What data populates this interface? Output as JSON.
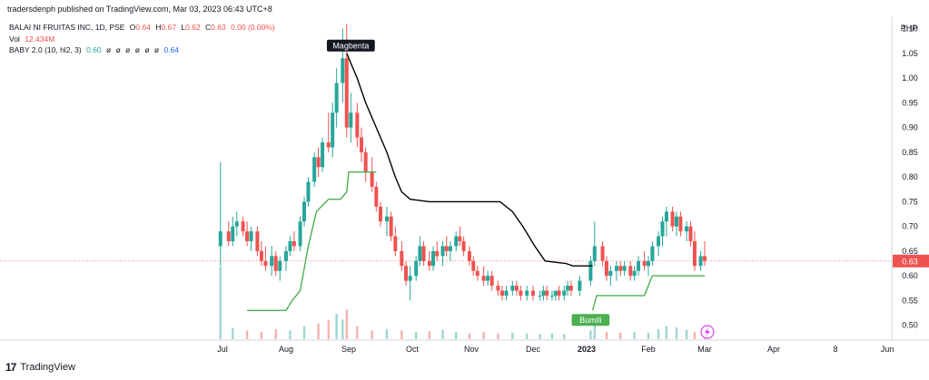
{
  "header": {
    "author_line": "tradersdenph published on TradingView.com, Mar 03, 2023 06:43 UTC+8"
  },
  "legend": {
    "symbol": "BALAI NI FRUITAS INC, 1D, PSE",
    "ohlc": [
      {
        "k": "O",
        "v": "0.64"
      },
      {
        "k": "H",
        "v": "0.67"
      },
      {
        "k": "L",
        "v": "0.62"
      },
      {
        "k": "C",
        "v": "0.63"
      }
    ],
    "change": "0.00 (0.00%)",
    "vol_label": "Vol",
    "vol_value": "12.434M",
    "indicator_label": "BABY 2.0 (10, hl2, 3)",
    "indicator_value": "0.60",
    "indicator_empty": [
      "ø",
      "ø",
      "ø",
      "ø",
      "ø",
      "ø"
    ],
    "indicator_value2": "0.64"
  },
  "footer": {
    "brand": "TradingView"
  },
  "colors": {
    "up": "#26a69a",
    "down": "#ef5350",
    "black_line": "#000000",
    "green_line": "#4caf50",
    "price_label_bg": "#ef5350"
  },
  "chart_data": {
    "type": "candlestick",
    "currency": "PHP",
    "y_ticks": [
      "1.10",
      "1.05",
      "1.00",
      "0.95",
      "0.90",
      "0.85",
      "0.80",
      "0.75",
      "0.70",
      "0.65",
      "0.60",
      "0.55",
      "0.50"
    ],
    "ylim": [
      0.47,
      1.125
    ],
    "last_price": "0.63",
    "x_ticks": [
      "Jul",
      "Aug",
      "Sep",
      "Oct",
      "Nov",
      "Dec",
      "2023",
      "Feb",
      "Mar",
      "Apr",
      "8",
      "Jun"
    ],
    "x_tick_dates": [
      "2022-07-01",
      "2022-08-01",
      "2022-09-01",
      "2022-10-01",
      "2022-11-01",
      "2022-12-01",
      "2023-01-01",
      "2023-02-01",
      "2023-03-01",
      "2023-04-01",
      "2023-05-08",
      "2023-06-01"
    ],
    "candles": [
      {
        "d": "2022-06-30",
        "o": 0.66,
        "h": 0.83,
        "l": 0.62,
        "c": 0.69
      },
      {
        "d": "2022-07-04",
        "o": 0.69,
        "h": 0.71,
        "l": 0.66,
        "c": 0.67
      },
      {
        "d": "2022-07-06",
        "o": 0.67,
        "h": 0.72,
        "l": 0.66,
        "c": 0.7
      },
      {
        "d": "2022-07-08",
        "o": 0.7,
        "h": 0.73,
        "l": 0.68,
        "c": 0.71
      },
      {
        "d": "2022-07-11",
        "o": 0.71,
        "h": 0.72,
        "l": 0.68,
        "c": 0.69
      },
      {
        "d": "2022-07-13",
        "o": 0.69,
        "h": 0.71,
        "l": 0.66,
        "c": 0.67
      },
      {
        "d": "2022-07-15",
        "o": 0.67,
        "h": 0.7,
        "l": 0.65,
        "c": 0.69
      },
      {
        "d": "2022-07-18",
        "o": 0.69,
        "h": 0.7,
        "l": 0.64,
        "c": 0.65
      },
      {
        "d": "2022-07-20",
        "o": 0.65,
        "h": 0.67,
        "l": 0.62,
        "c": 0.63
      },
      {
        "d": "2022-07-22",
        "o": 0.63,
        "h": 0.66,
        "l": 0.61,
        "c": 0.62
      },
      {
        "d": "2022-07-25",
        "o": 0.62,
        "h": 0.66,
        "l": 0.6,
        "c": 0.64
      },
      {
        "d": "2022-07-27",
        "o": 0.64,
        "h": 0.65,
        "l": 0.6,
        "c": 0.61
      },
      {
        "d": "2022-07-29",
        "o": 0.61,
        "h": 0.64,
        "l": 0.59,
        "c": 0.63
      },
      {
        "d": "2022-08-01",
        "o": 0.63,
        "h": 0.66,
        "l": 0.61,
        "c": 0.65
      },
      {
        "d": "2022-08-03",
        "o": 0.65,
        "h": 0.68,
        "l": 0.64,
        "c": 0.67
      },
      {
        "d": "2022-08-05",
        "o": 0.67,
        "h": 0.69,
        "l": 0.65,
        "c": 0.66
      },
      {
        "d": "2022-08-08",
        "o": 0.66,
        "h": 0.72,
        "l": 0.65,
        "c": 0.71
      },
      {
        "d": "2022-08-10",
        "o": 0.71,
        "h": 0.76,
        "l": 0.7,
        "c": 0.75
      },
      {
        "d": "2022-08-12",
        "o": 0.75,
        "h": 0.8,
        "l": 0.74,
        "c": 0.79
      },
      {
        "d": "2022-08-15",
        "o": 0.79,
        "h": 0.85,
        "l": 0.78,
        "c": 0.84
      },
      {
        "d": "2022-08-17",
        "o": 0.84,
        "h": 0.86,
        "l": 0.8,
        "c": 0.82
      },
      {
        "d": "2022-08-19",
        "o": 0.82,
        "h": 0.88,
        "l": 0.81,
        "c": 0.87
      },
      {
        "d": "2022-08-22",
        "o": 0.87,
        "h": 0.93,
        "l": 0.85,
        "c": 0.86
      },
      {
        "d": "2022-08-24",
        "o": 0.86,
        "h": 0.95,
        "l": 0.84,
        "c": 0.93
      },
      {
        "d": "2022-08-26",
        "o": 0.93,
        "h": 1.02,
        "l": 0.9,
        "c": 0.99
      },
      {
        "d": "2022-08-29",
        "o": 0.99,
        "h": 1.1,
        "l": 0.95,
        "c": 1.04
      },
      {
        "d": "2022-08-31",
        "o": 1.04,
        "h": 1.11,
        "l": 0.88,
        "c": 0.9
      },
      {
        "d": "2022-09-02",
        "o": 0.9,
        "h": 0.97,
        "l": 0.87,
        "c": 0.93
      },
      {
        "d": "2022-09-05",
        "o": 0.93,
        "h": 0.95,
        "l": 0.86,
        "c": 0.88
      },
      {
        "d": "2022-09-07",
        "o": 0.88,
        "h": 0.9,
        "l": 0.83,
        "c": 0.85
      },
      {
        "d": "2022-09-09",
        "o": 0.85,
        "h": 0.86,
        "l": 0.79,
        "c": 0.81
      },
      {
        "d": "2022-09-12",
        "o": 0.81,
        "h": 0.84,
        "l": 0.77,
        "c": 0.78
      },
      {
        "d": "2022-09-14",
        "o": 0.78,
        "h": 0.79,
        "l": 0.73,
        "c": 0.74
      },
      {
        "d": "2022-09-16",
        "o": 0.74,
        "h": 0.75,
        "l": 0.7,
        "c": 0.71
      },
      {
        "d": "2022-09-19",
        "o": 0.71,
        "h": 0.74,
        "l": 0.68,
        "c": 0.72
      },
      {
        "d": "2022-09-21",
        "o": 0.72,
        "h": 0.73,
        "l": 0.67,
        "c": 0.68
      },
      {
        "d": "2022-09-23",
        "o": 0.68,
        "h": 0.7,
        "l": 0.64,
        "c": 0.65
      },
      {
        "d": "2022-09-26",
        "o": 0.65,
        "h": 0.67,
        "l": 0.61,
        "c": 0.62
      },
      {
        "d": "2022-09-28",
        "o": 0.62,
        "h": 0.63,
        "l": 0.58,
        "c": 0.59
      },
      {
        "d": "2022-09-30",
        "o": 0.59,
        "h": 0.62,
        "l": 0.55,
        "c": 0.6
      },
      {
        "d": "2022-10-03",
        "o": 0.6,
        "h": 0.64,
        "l": 0.59,
        "c": 0.63
      },
      {
        "d": "2022-10-05",
        "o": 0.63,
        "h": 0.68,
        "l": 0.62,
        "c": 0.66
      },
      {
        "d": "2022-10-07",
        "o": 0.66,
        "h": 0.67,
        "l": 0.62,
        "c": 0.63
      },
      {
        "d": "2022-10-10",
        "o": 0.63,
        "h": 0.65,
        "l": 0.61,
        "c": 0.62
      },
      {
        "d": "2022-10-12",
        "o": 0.62,
        "h": 0.66,
        "l": 0.61,
        "c": 0.65
      },
      {
        "d": "2022-10-14",
        "o": 0.65,
        "h": 0.67,
        "l": 0.63,
        "c": 0.64
      },
      {
        "d": "2022-10-17",
        "o": 0.64,
        "h": 0.67,
        "l": 0.62,
        "c": 0.66
      },
      {
        "d": "2022-10-19",
        "o": 0.66,
        "h": 0.68,
        "l": 0.64,
        "c": 0.65
      },
      {
        "d": "2022-10-21",
        "o": 0.65,
        "h": 0.67,
        "l": 0.63,
        "c": 0.66
      },
      {
        "d": "2022-10-24",
        "o": 0.66,
        "h": 0.69,
        "l": 0.65,
        "c": 0.68
      },
      {
        "d": "2022-10-26",
        "o": 0.68,
        "h": 0.7,
        "l": 0.66,
        "c": 0.67
      },
      {
        "d": "2022-10-28",
        "o": 0.67,
        "h": 0.68,
        "l": 0.64,
        "c": 0.65
      },
      {
        "d": "2022-10-31",
        "o": 0.65,
        "h": 0.66,
        "l": 0.62,
        "c": 0.63
      },
      {
        "d": "2022-11-02",
        "o": 0.63,
        "h": 0.64,
        "l": 0.6,
        "c": 0.61
      },
      {
        "d": "2022-11-04",
        "o": 0.61,
        "h": 0.62,
        "l": 0.59,
        "c": 0.6
      },
      {
        "d": "2022-11-07",
        "o": 0.6,
        "h": 0.62,
        "l": 0.58,
        "c": 0.59
      },
      {
        "d": "2022-11-09",
        "o": 0.59,
        "h": 0.61,
        "l": 0.58,
        "c": 0.6
      },
      {
        "d": "2022-11-11",
        "o": 0.6,
        "h": 0.61,
        "l": 0.57,
        "c": 0.58
      },
      {
        "d": "2022-11-14",
        "o": 0.58,
        "h": 0.59,
        "l": 0.56,
        "c": 0.57
      },
      {
        "d": "2022-11-16",
        "o": 0.57,
        "h": 0.58,
        "l": 0.55,
        "c": 0.56
      },
      {
        "d": "2022-11-18",
        "o": 0.56,
        "h": 0.58,
        "l": 0.55,
        "c": 0.57
      },
      {
        "d": "2022-11-21",
        "o": 0.57,
        "h": 0.59,
        "l": 0.56,
        "c": 0.58
      },
      {
        "d": "2022-11-23",
        "o": 0.58,
        "h": 0.59,
        "l": 0.56,
        "c": 0.57
      },
      {
        "d": "2022-11-25",
        "o": 0.57,
        "h": 0.58,
        "l": 0.55,
        "c": 0.56
      },
      {
        "d": "2022-11-28",
        "o": 0.56,
        "h": 0.58,
        "l": 0.55,
        "c": 0.57
      },
      {
        "d": "2022-12-01",
        "o": 0.57,
        "h": 0.58,
        "l": 0.55,
        "c": 0.56
      },
      {
        "d": "2022-12-05",
        "o": 0.56,
        "h": 0.57,
        "l": 0.55,
        "c": 0.56
      },
      {
        "d": "2022-12-07",
        "o": 0.56,
        "h": 0.58,
        "l": 0.55,
        "c": 0.57
      },
      {
        "d": "2022-12-09",
        "o": 0.57,
        "h": 0.58,
        "l": 0.55,
        "c": 0.56
      },
      {
        "d": "2022-12-12",
        "o": 0.56,
        "h": 0.57,
        "l": 0.55,
        "c": 0.56
      },
      {
        "d": "2022-12-14",
        "o": 0.56,
        "h": 0.57,
        "l": 0.55,
        "c": 0.57
      },
      {
        "d": "2022-12-16",
        "o": 0.57,
        "h": 0.58,
        "l": 0.55,
        "c": 0.56
      },
      {
        "d": "2022-12-19",
        "o": 0.56,
        "h": 0.58,
        "l": 0.55,
        "c": 0.57
      },
      {
        "d": "2022-12-21",
        "o": 0.57,
        "h": 0.59,
        "l": 0.56,
        "c": 0.58
      },
      {
        "d": "2022-12-23",
        "o": 0.58,
        "h": 0.59,
        "l": 0.56,
        "c": 0.57
      },
      {
        "d": "2022-12-28",
        "o": 0.57,
        "h": 0.6,
        "l": 0.56,
        "c": 0.59
      },
      {
        "d": "2023-01-03",
        "o": 0.59,
        "h": 0.64,
        "l": 0.58,
        "c": 0.63
      },
      {
        "d": "2023-01-05",
        "o": 0.63,
        "h": 0.71,
        "l": 0.62,
        "c": 0.66
      },
      {
        "d": "2023-01-09",
        "o": 0.66,
        "h": 0.67,
        "l": 0.62,
        "c": 0.63
      },
      {
        "d": "2023-01-11",
        "o": 0.63,
        "h": 0.64,
        "l": 0.59,
        "c": 0.6
      },
      {
        "d": "2023-01-13",
        "o": 0.6,
        "h": 0.62,
        "l": 0.58,
        "c": 0.61
      },
      {
        "d": "2023-01-16",
        "o": 0.61,
        "h": 0.63,
        "l": 0.59,
        "c": 0.62
      },
      {
        "d": "2023-01-18",
        "o": 0.62,
        "h": 0.63,
        "l": 0.6,
        "c": 0.61
      },
      {
        "d": "2023-01-20",
        "o": 0.61,
        "h": 0.63,
        "l": 0.6,
        "c": 0.62
      },
      {
        "d": "2023-01-23",
        "o": 0.62,
        "h": 0.63,
        "l": 0.59,
        "c": 0.6
      },
      {
        "d": "2023-01-25",
        "o": 0.6,
        "h": 0.62,
        "l": 0.59,
        "c": 0.61
      },
      {
        "d": "2023-01-27",
        "o": 0.61,
        "h": 0.64,
        "l": 0.6,
        "c": 0.63
      },
      {
        "d": "2023-01-30",
        "o": 0.63,
        "h": 0.65,
        "l": 0.61,
        "c": 0.62
      },
      {
        "d": "2023-02-01",
        "o": 0.62,
        "h": 0.64,
        "l": 0.6,
        "c": 0.63
      },
      {
        "d": "2023-02-03",
        "o": 0.63,
        "h": 0.67,
        "l": 0.62,
        "c": 0.66
      },
      {
        "d": "2023-02-06",
        "o": 0.66,
        "h": 0.69,
        "l": 0.64,
        "c": 0.68
      },
      {
        "d": "2023-02-08",
        "o": 0.68,
        "h": 0.72,
        "l": 0.66,
        "c": 0.71
      },
      {
        "d": "2023-02-10",
        "o": 0.71,
        "h": 0.74,
        "l": 0.68,
        "c": 0.73
      },
      {
        "d": "2023-02-13",
        "o": 0.73,
        "h": 0.74,
        "l": 0.69,
        "c": 0.7
      },
      {
        "d": "2023-02-15",
        "o": 0.7,
        "h": 0.73,
        "l": 0.68,
        "c": 0.72
      },
      {
        "d": "2023-02-17",
        "o": 0.72,
        "h": 0.73,
        "l": 0.68,
        "c": 0.69
      },
      {
        "d": "2023-02-20",
        "o": 0.69,
        "h": 0.71,
        "l": 0.67,
        "c": 0.7
      },
      {
        "d": "2023-02-22",
        "o": 0.7,
        "h": 0.71,
        "l": 0.66,
        "c": 0.67
      },
      {
        "d": "2023-02-24",
        "o": 0.67,
        "h": 0.69,
        "l": 0.61,
        "c": 0.62
      },
      {
        "d": "2023-02-27",
        "o": 0.62,
        "h": 0.65,
        "l": 0.61,
        "c": 0.64
      },
      {
        "d": "2023-03-01",
        "o": 0.64,
        "h": 0.67,
        "l": 0.62,
        "c": 0.63
      }
    ],
    "volumes": [
      {
        "d": "2022-06-30",
        "v": 1.0
      },
      {
        "d": "2022-07-06",
        "v": 0.15
      },
      {
        "d": "2022-07-13",
        "v": 0.12
      },
      {
        "d": "2022-07-20",
        "v": 0.1
      },
      {
        "d": "2022-07-27",
        "v": 0.14
      },
      {
        "d": "2022-08-03",
        "v": 0.12
      },
      {
        "d": "2022-08-10",
        "v": 0.18
      },
      {
        "d": "2022-08-17",
        "v": 0.22
      },
      {
        "d": "2022-08-22",
        "v": 0.26
      },
      {
        "d": "2022-08-26",
        "v": 0.35
      },
      {
        "d": "2022-08-29",
        "v": 0.27
      },
      {
        "d": "2022-08-31",
        "v": 0.41
      },
      {
        "d": "2022-09-05",
        "v": 0.18
      },
      {
        "d": "2022-09-12",
        "v": 0.12
      },
      {
        "d": "2022-09-19",
        "v": 0.14
      },
      {
        "d": "2022-09-26",
        "v": 0.12
      },
      {
        "d": "2022-10-03",
        "v": 0.1
      },
      {
        "d": "2022-10-10",
        "v": 0.11
      },
      {
        "d": "2022-10-17",
        "v": 0.13
      },
      {
        "d": "2022-10-24",
        "v": 0.1
      },
      {
        "d": "2022-10-31",
        "v": 0.08
      },
      {
        "d": "2022-11-07",
        "v": 0.1
      },
      {
        "d": "2022-11-14",
        "v": 0.08
      },
      {
        "d": "2022-11-21",
        "v": 0.09
      },
      {
        "d": "2022-11-28",
        "v": 0.08
      },
      {
        "d": "2022-12-05",
        "v": 0.07
      },
      {
        "d": "2022-12-12",
        "v": 0.08
      },
      {
        "d": "2022-12-19",
        "v": 0.07
      },
      {
        "d": "2023-01-03",
        "v": 0.12
      },
      {
        "d": "2023-01-05",
        "v": 0.2
      },
      {
        "d": "2023-01-11",
        "v": 0.1
      },
      {
        "d": "2023-01-18",
        "v": 0.09
      },
      {
        "d": "2023-01-25",
        "v": 0.1
      },
      {
        "d": "2023-02-01",
        "v": 0.09
      },
      {
        "d": "2023-02-06",
        "v": 0.14
      },
      {
        "d": "2023-02-10",
        "v": 0.18
      },
      {
        "d": "2023-02-15",
        "v": 0.16
      },
      {
        "d": "2023-02-20",
        "v": 0.13
      },
      {
        "d": "2023-02-24",
        "v": 0.1
      },
      {
        "d": "2023-03-01",
        "v": 0.07
      }
    ],
    "black_line": [
      {
        "d": "2022-08-31",
        "v": 1.05
      },
      {
        "d": "2022-09-05",
        "v": 1.0
      },
      {
        "d": "2022-09-09",
        "v": 0.95
      },
      {
        "d": "2022-09-14",
        "v": 0.9
      },
      {
        "d": "2022-09-19",
        "v": 0.85
      },
      {
        "d": "2022-09-23",
        "v": 0.8
      },
      {
        "d": "2022-09-26",
        "v": 0.77
      },
      {
        "d": "2022-09-30",
        "v": 0.755
      },
      {
        "d": "2022-10-10",
        "v": 0.75
      },
      {
        "d": "2022-11-15",
        "v": 0.75
      },
      {
        "d": "2022-11-21",
        "v": 0.73
      },
      {
        "d": "2022-11-26",
        "v": 0.7
      },
      {
        "d": "2022-12-02",
        "v": 0.66
      },
      {
        "d": "2022-12-08",
        "v": 0.63
      },
      {
        "d": "2022-12-20",
        "v": 0.625
      },
      {
        "d": "2022-12-24",
        "v": 0.62
      },
      {
        "d": "2023-01-04",
        "v": 0.62
      }
    ],
    "green_line": [
      {
        "d": "2022-07-13",
        "v": 0.53
      },
      {
        "d": "2022-07-25",
        "v": 0.53
      },
      {
        "d": "2022-08-01",
        "v": 0.53
      },
      {
        "d": "2022-08-04",
        "v": 0.55
      },
      {
        "d": "2022-08-08",
        "v": 0.57
      },
      {
        "d": "2022-08-12",
        "v": 0.66
      },
      {
        "d": "2022-08-16",
        "v": 0.73
      },
      {
        "d": "2022-08-22",
        "v": 0.755
      },
      {
        "d": "2022-08-28",
        "v": 0.755
      },
      {
        "d": "2022-08-31",
        "v": 0.77
      },
      {
        "d": "2022-09-01",
        "v": 0.81
      },
      {
        "d": "2022-09-14",
        "v": 0.81
      }
    ],
    "green_line_2": [
      {
        "d": "2023-01-04",
        "v": 0.53
      },
      {
        "d": "2023-01-06",
        "v": 0.56
      },
      {
        "d": "2023-01-30",
        "v": 0.56
      },
      {
        "d": "2023-02-03",
        "v": 0.6
      },
      {
        "d": "2023-03-01",
        "v": 0.6
      }
    ],
    "annotations": [
      {
        "label": "Magbenta",
        "d": "2022-09-02",
        "v": 1.065,
        "style": "dark"
      },
      {
        "label": "Bumili",
        "d": "2023-01-03",
        "v": 0.51,
        "style": "green"
      }
    ]
  }
}
